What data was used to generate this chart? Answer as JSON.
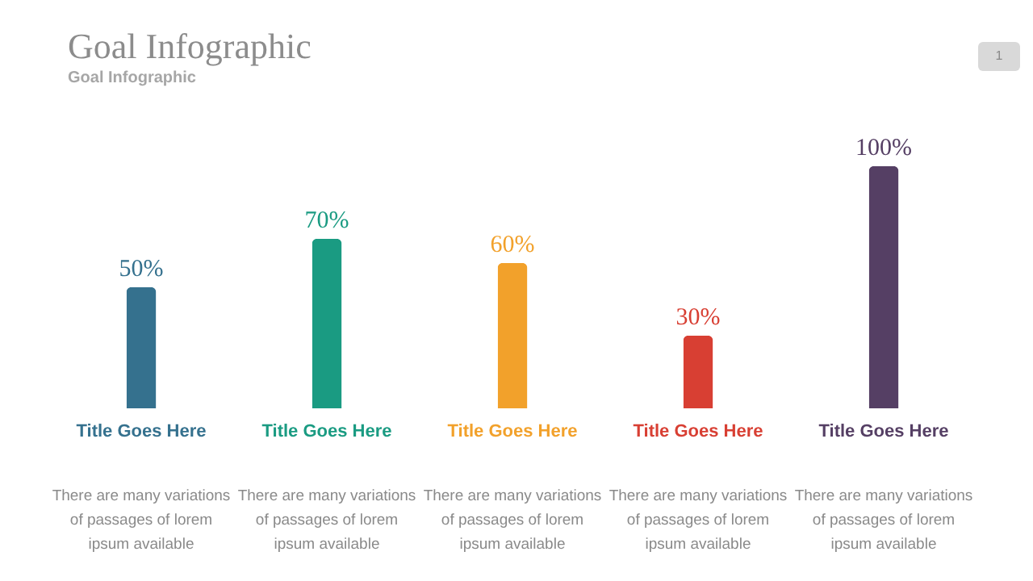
{
  "chart_data": {
    "type": "bar",
    "title": "Goal Infographic",
    "subtitle": "Goal Infographic",
    "categories": [
      "Title Goes Here",
      "Title Goes Here",
      "Title Goes Here",
      "Title Goes Here",
      "Title Goes Here"
    ],
    "values": [
      50,
      70,
      60,
      30,
      100
    ],
    "colors": [
      "#35718e",
      "#1a9b82",
      "#f2a12b",
      "#d83f33",
      "#553f64"
    ],
    "value_labels": [
      "50%",
      "70%",
      "60%",
      "30%",
      "100%"
    ],
    "ylim": [
      0,
      100
    ],
    "annotations": [
      "1",
      "There are many variations of passages of lorem ipsum available",
      "There are many variations of passages of lorem ipsum available",
      "There are many variations of passages of lorem ipsum available",
      "There are many variations of passages of lorem ipsum available",
      "There are many variations of passages of lorem ipsum available"
    ]
  }
}
